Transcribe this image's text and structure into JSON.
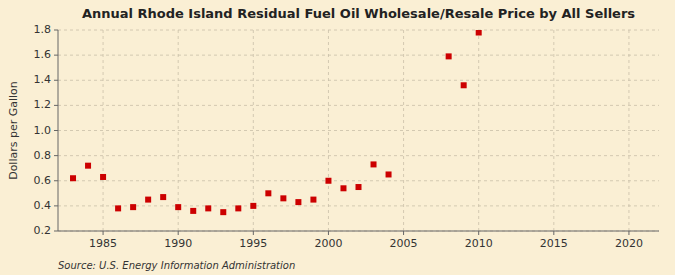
{
  "chart_data": {
    "type": "scatter",
    "title": "Annual Rhode Island Residual Fuel Oil Wholesale/Resale Price by All Sellers",
    "ylabel": "Dollars per Gallon",
    "source": "Source: U.S. Energy Information Administration",
    "x": [
      1983,
      1984,
      1985,
      1986,
      1987,
      1988,
      1989,
      1990,
      1991,
      1992,
      1993,
      1994,
      1995,
      1996,
      1997,
      1998,
      1999,
      2000,
      2001,
      2002,
      2003,
      2004,
      2008,
      2009,
      2010
    ],
    "values": [
      0.62,
      0.72,
      0.63,
      0.38,
      0.39,
      0.45,
      0.47,
      0.39,
      0.36,
      0.38,
      0.35,
      0.38,
      0.4,
      0.5,
      0.46,
      0.43,
      0.45,
      0.6,
      0.54,
      0.55,
      0.73,
      0.65,
      1.59,
      1.36,
      1.78
    ],
    "color": "#cc0000",
    "marker": "square",
    "xlim": [
      1982,
      2022
    ],
    "ylim": [
      0.2,
      1.8
    ],
    "xticks": [
      1985,
      1990,
      1995,
      2000,
      2005,
      2010,
      2015,
      2020
    ],
    "yticks": [
      0.2,
      0.4,
      0.6,
      0.8,
      {
        "value": 1.0,
        "label": "1.0"
      },
      1.2,
      1.4,
      1.6,
      1.8
    ],
    "grid": true
  }
}
